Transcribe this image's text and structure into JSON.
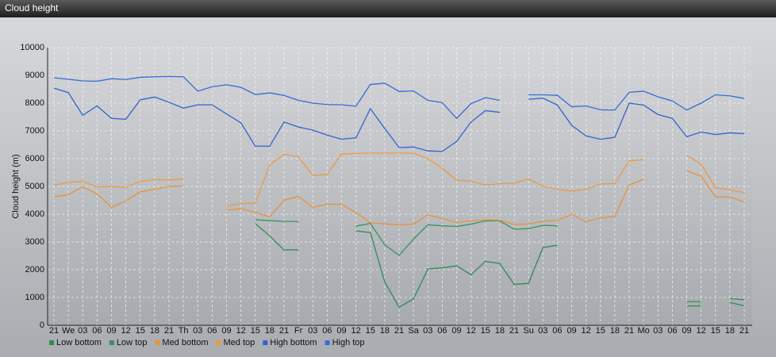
{
  "chart_data": {
    "type": "line",
    "title": "Cloud height",
    "y_label": "Cloud height (m)",
    "categories": [
      "21",
      "We",
      "03",
      "06",
      "09",
      "12",
      "15",
      "18",
      "21",
      "Th",
      "03",
      "06",
      "09",
      "12",
      "15",
      "18",
      "21",
      "Fr",
      "03",
      "06",
      "09",
      "12",
      "15",
      "18",
      "21",
      "Sa",
      "03",
      "06",
      "09",
      "12",
      "15",
      "18",
      "21",
      "Su",
      "03",
      "06",
      "09",
      "12",
      "15",
      "18",
      "21",
      "Mo",
      "03",
      "06",
      "09",
      "12",
      "15",
      "18",
      "21"
    ],
    "ylim": [
      0,
      10000
    ],
    "yticks": [
      0,
      1000,
      2000,
      3000,
      4000,
      5000,
      6000,
      7000,
      8000,
      9000,
      10000
    ],
    "grid": true,
    "series": [
      {
        "name": "Low bottom",
        "color": "#2f8a57",
        "values": [
          null,
          null,
          null,
          null,
          null,
          null,
          null,
          null,
          null,
          null,
          null,
          null,
          null,
          null,
          3660,
          3220,
          2710,
          2720,
          null,
          null,
          null,
          3400,
          3340,
          1560,
          650,
          950,
          2030,
          2070,
          2140,
          1820,
          2300,
          2230,
          1470,
          1510,
          2800,
          2880,
          null,
          null,
          null,
          null,
          null,
          null,
          null,
          null,
          690,
          700,
          null,
          820,
          700
        ]
      },
      {
        "name": "Low top",
        "color": "#34935e",
        "values": [
          null,
          null,
          null,
          null,
          null,
          null,
          null,
          null,
          null,
          null,
          null,
          null,
          null,
          null,
          3800,
          3770,
          3740,
          3740,
          null,
          null,
          null,
          3570,
          3670,
          2900,
          2520,
          3100,
          3620,
          3580,
          3560,
          3640,
          3760,
          3760,
          3460,
          3480,
          3600,
          3580,
          null,
          null,
          null,
          null,
          null,
          null,
          null,
          null,
          850,
          850,
          null,
          960,
          920
        ]
      },
      {
        "name": "Med bottom",
        "color": "#e8923a",
        "values": [
          4630,
          4700,
          4990,
          4730,
          4250,
          4480,
          4810,
          4900,
          5000,
          5020,
          null,
          null,
          4140,
          4200,
          4070,
          3900,
          4500,
          4640,
          4250,
          4360,
          4360,
          4060,
          3690,
          3650,
          3620,
          3640,
          3980,
          3840,
          3700,
          3760,
          3800,
          3780,
          3630,
          3650,
          3750,
          3780,
          3990,
          3730,
          3870,
          3920,
          5050,
          5260,
          null,
          null,
          5560,
          5370,
          4620,
          4620,
          4440
        ]
      },
      {
        "name": "Med top",
        "color": "#ec9a44",
        "values": [
          5050,
          5150,
          5180,
          4980,
          5000,
          4970,
          5180,
          5250,
          5230,
          5270,
          null,
          null,
          4300,
          4380,
          4400,
          5770,
          6160,
          6060,
          5400,
          5430,
          6170,
          6190,
          6200,
          6200,
          6200,
          6200,
          6000,
          5650,
          5220,
          5190,
          5050,
          5100,
          5120,
          5270,
          5000,
          4900,
          4830,
          4900,
          5090,
          5100,
          5920,
          5970,
          null,
          null,
          6120,
          5800,
          4950,
          4880,
          4770
        ]
      },
      {
        "name": "High bottom",
        "color": "#3563cf",
        "values": [
          8540,
          8380,
          7560,
          7900,
          7450,
          7420,
          8120,
          8220,
          8030,
          7820,
          7940,
          7940,
          7610,
          7290,
          6450,
          6450,
          7320,
          7140,
          7030,
          6850,
          6700,
          6750,
          7800,
          7090,
          6400,
          6420,
          6280,
          6260,
          6620,
          7320,
          7730,
          7670,
          null,
          8140,
          8180,
          7930,
          7200,
          6820,
          6700,
          6770,
          8000,
          7930,
          7590,
          7450,
          6790,
          6960,
          6870,
          6930,
          6900
        ]
      },
      {
        "name": "High top",
        "color": "#3a6ad6",
        "values": [
          8910,
          8860,
          8800,
          8790,
          8880,
          8850,
          8930,
          8950,
          8960,
          8950,
          8430,
          8590,
          8660,
          8570,
          8310,
          8370,
          8280,
          8100,
          8000,
          7950,
          7940,
          7890,
          8670,
          8720,
          8420,
          8440,
          8100,
          8020,
          7450,
          7980,
          8200,
          8100,
          null,
          8300,
          8300,
          8280,
          7870,
          7900,
          7760,
          7750,
          8390,
          8430,
          8230,
          8080,
          7750,
          8000,
          8300,
          8260,
          8170
        ]
      }
    ]
  }
}
